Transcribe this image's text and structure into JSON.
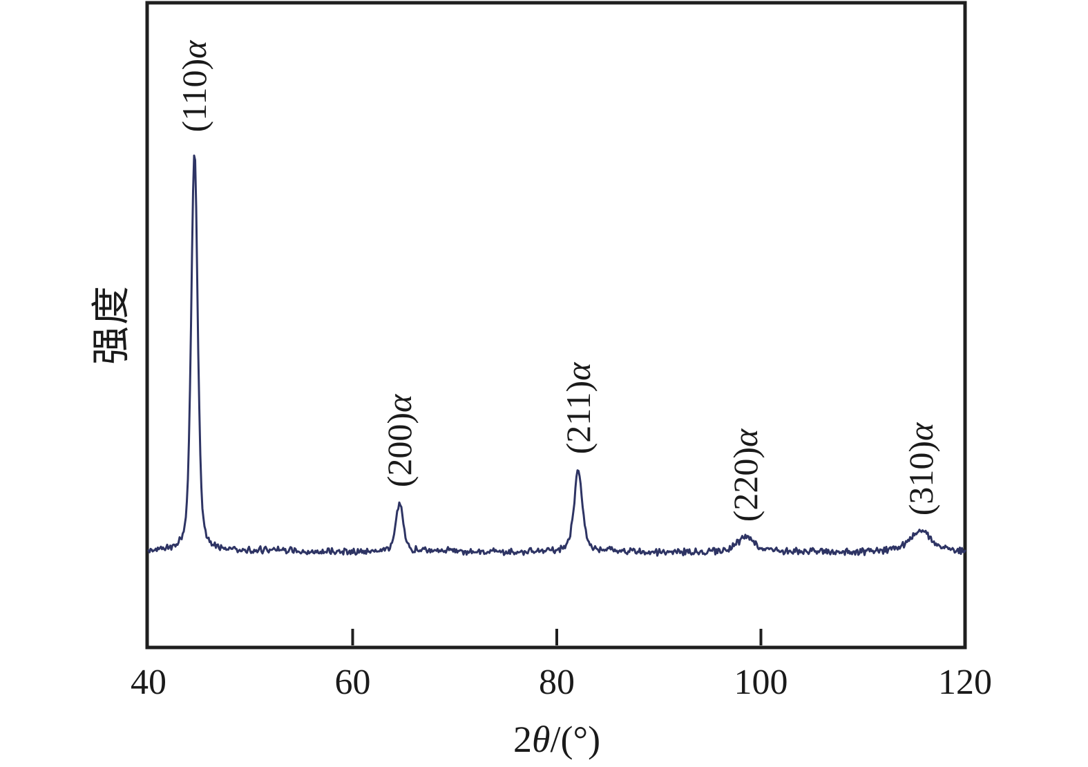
{
  "figure": {
    "background": "#ffffff",
    "axis_color": "#1f1f1f",
    "trace_color": "#2e3464",
    "text_color": "#1a1a1a"
  },
  "axes": {
    "xlabel_prefix": "2",
    "xlabel_theta": "θ",
    "xlabel_suffix": "/(°)",
    "ylabel": "强度"
  },
  "chart_data": {
    "type": "line",
    "title": "",
    "xlabel": "2θ/(°)",
    "ylabel": "强度",
    "x_range": [
      40,
      120
    ],
    "x_ticks": [
      40,
      60,
      80,
      100,
      120
    ],
    "x_tick_labels": [
      "40",
      "60",
      "80",
      "100",
      "120"
    ],
    "y_ticks": [],
    "grid": false,
    "legend": false,
    "series_description": "single noisy XRD intensity trace, flat baseline with five diffraction peaks",
    "peaks": [
      {
        "hkl": "(110)",
        "phase": "α",
        "label": "(110)α",
        "two_theta": 44.5,
        "relative_intensity": 100,
        "fwhm_deg": 0.75
      },
      {
        "hkl": "(200)",
        "phase": "α",
        "label": "(200)α",
        "two_theta": 64.6,
        "relative_intensity": 12,
        "fwhm_deg": 0.85
      },
      {
        "hkl": "(211)",
        "phase": "α",
        "label": "(211)α",
        "two_theta": 82.1,
        "relative_intensity": 20,
        "fwhm_deg": 0.95
      },
      {
        "hkl": "(220)",
        "phase": "α",
        "label": "(220)α",
        "two_theta": 98.5,
        "relative_intensity": 3.5,
        "fwhm_deg": 1.7
      },
      {
        "hkl": "(310)",
        "phase": "α",
        "label": "(310)α",
        "two_theta": 115.7,
        "relative_intensity": 5,
        "fwhm_deg": 2.4
      }
    ],
    "baseline_relative_intensity": 0,
    "noise_amplitude_relative": 0.6
  }
}
